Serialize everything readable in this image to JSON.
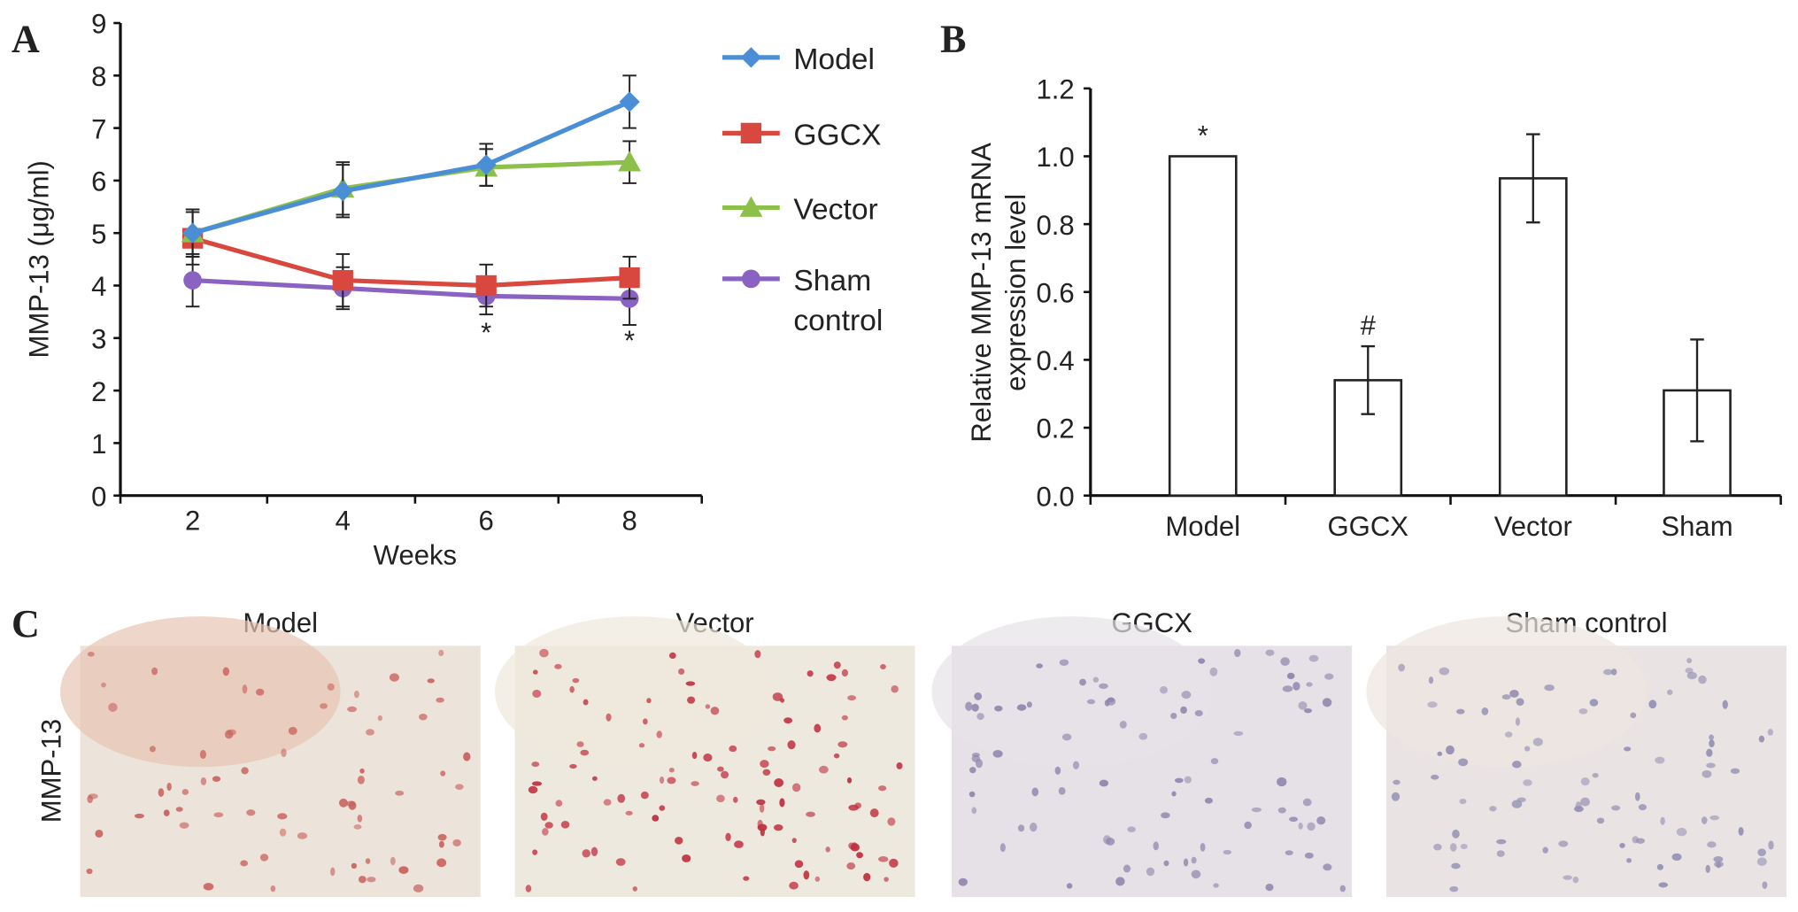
{
  "panels": {
    "a": "A",
    "b": "B",
    "c": "C"
  },
  "chart_data": [
    {
      "type": "line",
      "panel": "A",
      "xlabel": "Weeks",
      "ylabel": "MMP-13 (μg/ml)",
      "x": [
        2,
        4,
        6,
        8
      ],
      "xticks": [
        "2",
        "4",
        "6",
        "8"
      ],
      "ylim": [
        0,
        9
      ],
      "yticks": [
        "0",
        "1",
        "2",
        "3",
        "4",
        "5",
        "6",
        "7",
        "8",
        "9"
      ],
      "legend_position": "right",
      "series": [
        {
          "name": "Model",
          "color": "#4a8fd6",
          "marker": "diamond",
          "values": [
            5.0,
            5.8,
            6.3,
            7.5
          ],
          "errors": [
            0.45,
            0.5,
            0.4,
            0.5
          ]
        },
        {
          "name": "GGCX",
          "color": "#d9483f",
          "marker": "square",
          "values": [
            4.9,
            4.1,
            4.0,
            4.15
          ],
          "errors": [
            0.5,
            0.5,
            0.4,
            0.4
          ]
        },
        {
          "name": "Vector",
          "color": "#8dc04a",
          "marker": "triangle",
          "values": [
            5.0,
            5.85,
            6.25,
            6.35
          ],
          "errors": [
            0.45,
            0.5,
            0.35,
            0.4
          ]
        },
        {
          "name": "Sham control",
          "legend_lines": [
            "Sham",
            "control"
          ],
          "color": "#8a62c2",
          "marker": "circle",
          "values": [
            4.1,
            3.95,
            3.8,
            3.75
          ],
          "errors": [
            0.5,
            0.4,
            0.35,
            0.5
          ]
        }
      ],
      "annotations": [
        {
          "x": 6,
          "text": "*"
        },
        {
          "x": 8,
          "text": "*"
        }
      ]
    },
    {
      "type": "bar",
      "panel": "B",
      "categories": [
        "Model",
        "GGCX",
        "Vector",
        "Sham"
      ],
      "values": [
        1.0,
        0.34,
        0.935,
        0.31
      ],
      "errors": [
        0,
        0.1,
        0.13,
        0.15
      ],
      "annotations": [
        "*",
        "#",
        "",
        ""
      ],
      "ylabel_lines": [
        "Relative MMP-13 mRNA",
        "expression level"
      ],
      "ylim": [
        0,
        1.2
      ],
      "yticks": [
        "0.0",
        "0.2",
        "0.4",
        "0.6",
        "0.8",
        "1.0",
        "1.2"
      ]
    }
  ],
  "micrographs": {
    "row_label": "MMP-13",
    "images": [
      {
        "title": "Model",
        "bg": "#ece3da",
        "dot": "#c9625e",
        "count": 70,
        "tint": "#e8c4b4"
      },
      {
        "title": "Vector",
        "bg": "#eee9df",
        "dot": "#c0303f",
        "count": 110,
        "tint": "#efe8dc"
      },
      {
        "title": "GGCX",
        "bg": "#e5e1e6",
        "dot": "#8f86ad",
        "count": 90,
        "tint": "#e7e3e8"
      },
      {
        "title": "Sham control",
        "bg": "#e9e4e3",
        "dot": "#9590b3",
        "count": 90,
        "tint": "#ece6e0"
      }
    ]
  }
}
